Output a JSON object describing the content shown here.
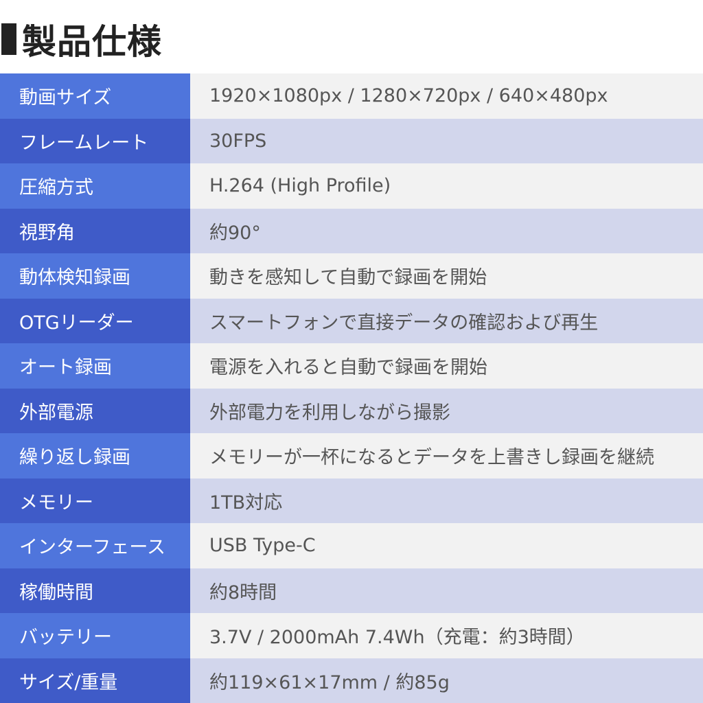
{
  "header": {
    "title": "製品仕様"
  },
  "colors": {
    "label_odd": "#4f75dc",
    "label_even": "#3f5bc8",
    "value_odd": "#f2f2f2",
    "value_even": "#d2d6ec"
  },
  "specs": [
    {
      "label": "動画サイズ",
      "value": "1920×1080px / 1280×720px / 640×480px"
    },
    {
      "label": "フレームレート",
      "value": "30FPS"
    },
    {
      "label": "圧縮方式",
      "value": "H.264 (High Profile)"
    },
    {
      "label": "視野角",
      "value": "約90°"
    },
    {
      "label": "動体検知録画",
      "value": "動きを感知して自動で録画を開始"
    },
    {
      "label": "OTGリーダー",
      "value": "スマートフォンで直接データの確認および再生"
    },
    {
      "label": "オート録画",
      "value": "電源を入れると自動で録画を開始"
    },
    {
      "label": "外部電源",
      "value": "外部電力を利用しながら撮影"
    },
    {
      "label": "繰り返し録画",
      "value": "メモリーが一杯になるとデータを上書きし録画を継続"
    },
    {
      "label": "メモリー",
      "value": "1TB対応"
    },
    {
      "label": "インターフェース",
      "value": "USB Type-C"
    },
    {
      "label": "稼働時間",
      "value": "約8時間"
    },
    {
      "label": "バッテリー",
      "value": "3.7V / 2000mAh 7.4Wh（充電：約3時間）"
    },
    {
      "label": "サイズ/重量",
      "value": "約119×61×17mm / 約85g"
    }
  ]
}
